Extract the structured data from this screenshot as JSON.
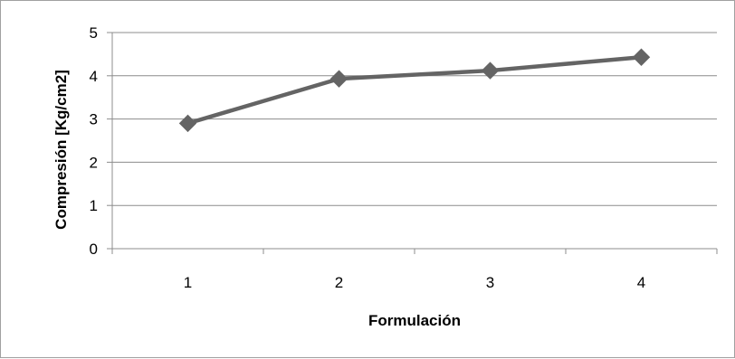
{
  "chart_data": {
    "type": "line",
    "title": "",
    "xlabel": "Formulación",
    "ylabel": "Compresión [Kg/cm2]",
    "categories": [
      "1",
      "2",
      "3",
      "4"
    ],
    "series": [
      {
        "values": [
          2.9,
          3.93,
          4.12,
          4.43
        ],
        "color": "#646464",
        "marker": "diamond"
      }
    ],
    "ylim": [
      0,
      5
    ],
    "yticks": [
      "0",
      "1",
      "2",
      "3",
      "4",
      "5"
    ],
    "grid": true,
    "legend": "none"
  }
}
